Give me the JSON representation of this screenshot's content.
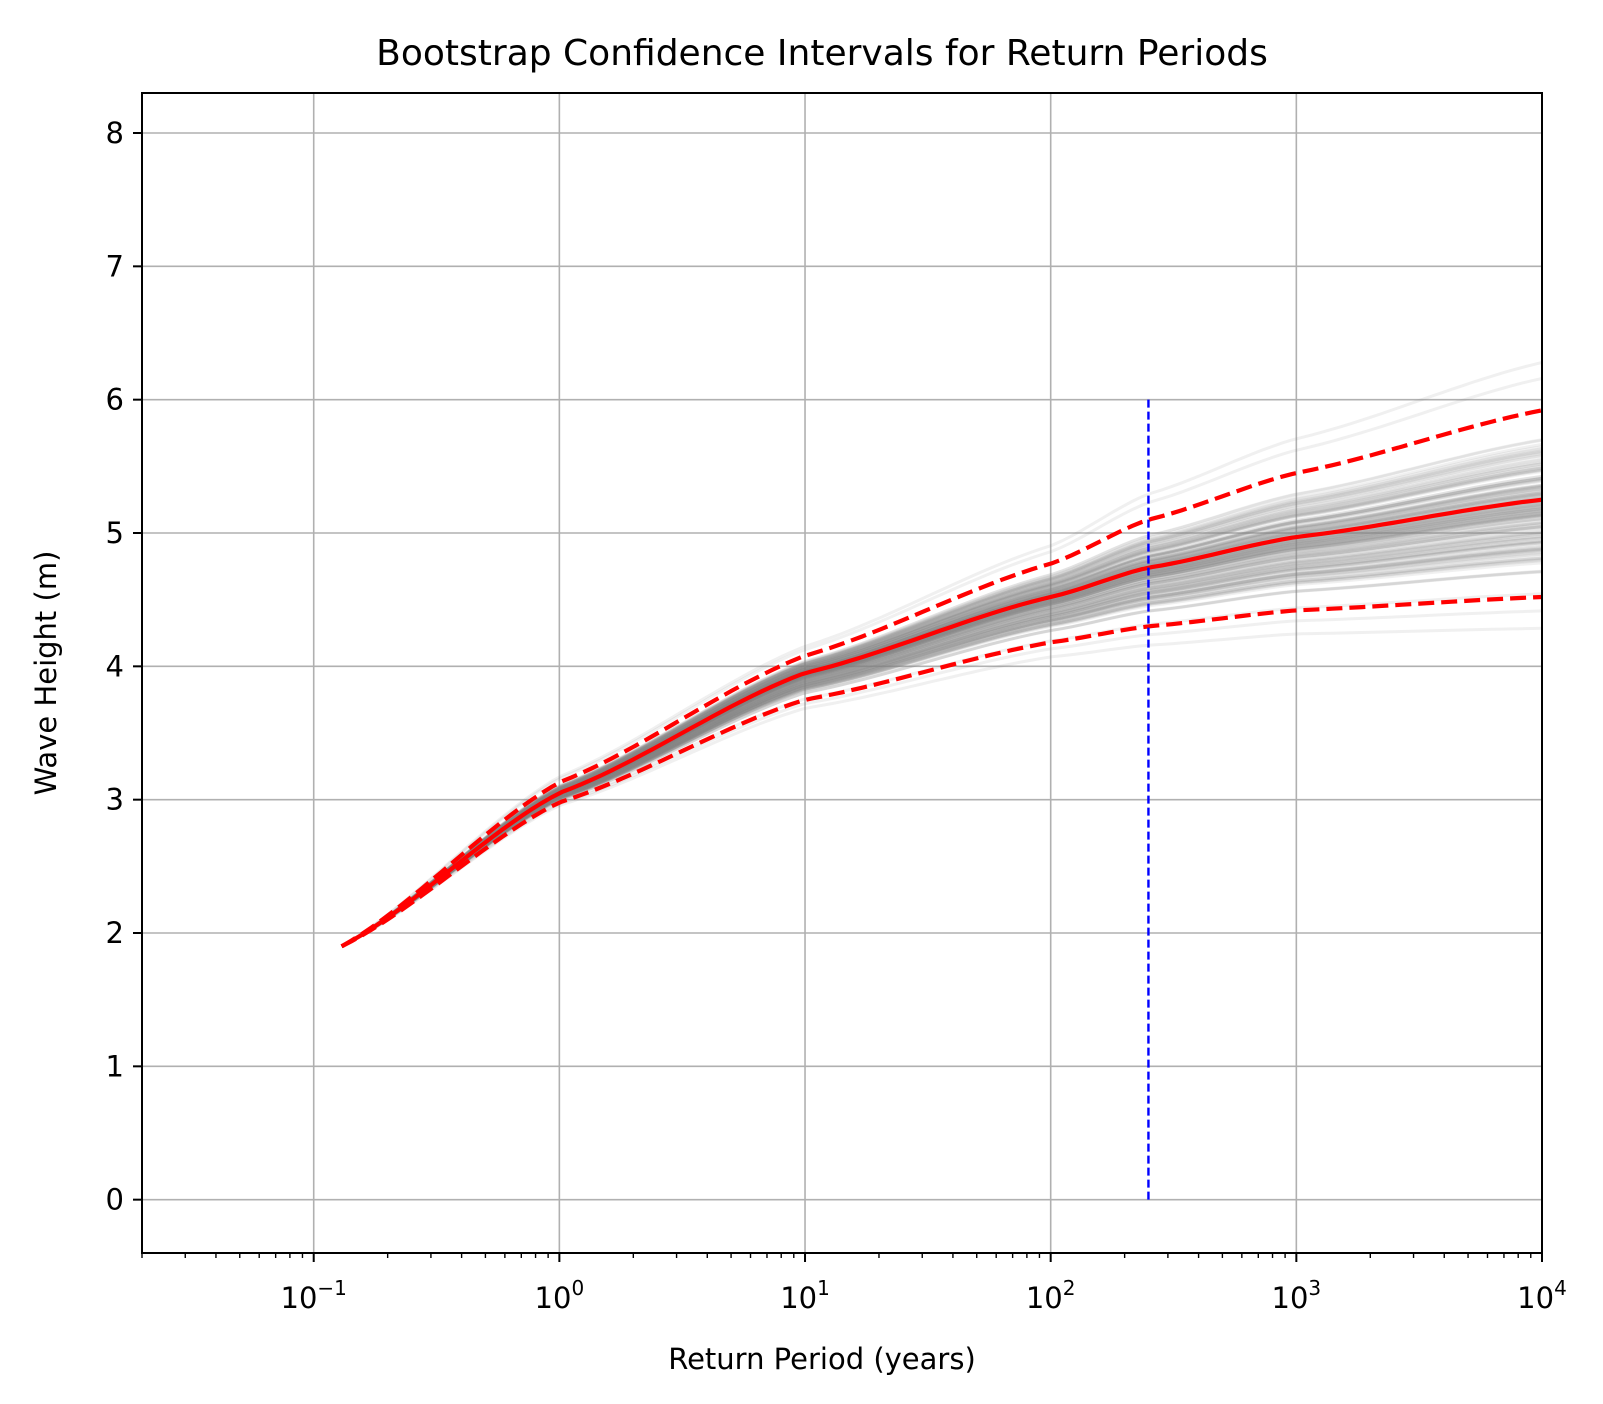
{
  "chart_data": {
    "type": "line",
    "title": "Bootstrap Confidence Intervals for Return Periods",
    "xlabel": "Return Period (years)",
    "ylabel": "Wave Height (m)",
    "xscale": "log",
    "xlim": [
      0.02,
      10000
    ],
    "ylim": [
      -0.4,
      8.3
    ],
    "grid": true,
    "x_ticks": [
      0.1,
      1,
      10,
      100,
      1000,
      10000
    ],
    "x_tick_labels": [
      {
        "base": "10",
        "exp": "−1"
      },
      {
        "base": "10",
        "exp": "0"
      },
      {
        "base": "10",
        "exp": "1"
      },
      {
        "base": "10",
        "exp": "2"
      },
      {
        "base": "10",
        "exp": "3"
      },
      {
        "base": "10",
        "exp": "4"
      }
    ],
    "y_ticks": [
      0,
      1,
      2,
      3,
      4,
      5,
      6,
      7,
      8
    ],
    "y_tick_labels": [
      "0",
      "1",
      "2",
      "3",
      "4",
      "5",
      "6",
      "7",
      "8"
    ],
    "curve_model": {
      "x_start": 0.13,
      "x_end": 10000,
      "y_start": 1.9,
      "central": {
        "color": "#ff0000",
        "style": "solid",
        "points": [
          [
            0.13,
            1.9
          ],
          [
            1,
            3.05
          ],
          [
            10,
            3.95
          ],
          [
            100,
            4.52
          ],
          [
            250,
            4.74
          ],
          [
            1000,
            4.97
          ],
          [
            10000,
            5.25
          ]
        ]
      },
      "upper": {
        "color": "#ff0000",
        "style": "dashed",
        "points": [
          [
            0.13,
            1.9
          ],
          [
            1,
            3.13
          ],
          [
            10,
            4.08
          ],
          [
            100,
            4.77
          ],
          [
            250,
            5.1
          ],
          [
            1000,
            5.45
          ],
          [
            10000,
            5.92
          ]
        ]
      },
      "lower": {
        "color": "#ff0000",
        "style": "dashed",
        "points": [
          [
            0.13,
            1.9
          ],
          [
            1,
            2.98
          ],
          [
            10,
            3.75
          ],
          [
            100,
            4.18
          ],
          [
            250,
            4.3
          ],
          [
            1000,
            4.42
          ],
          [
            10000,
            4.52
          ]
        ]
      },
      "bootstrap_color": "#808080",
      "bootstrap_count": 160,
      "bootstrap_y_at_end_range": [
        4.25,
        6.52
      ]
    },
    "vertical_line": {
      "x": 250,
      "y_from": 0,
      "y_to": 6,
      "color": "#0000ff",
      "style": "dashed"
    }
  }
}
